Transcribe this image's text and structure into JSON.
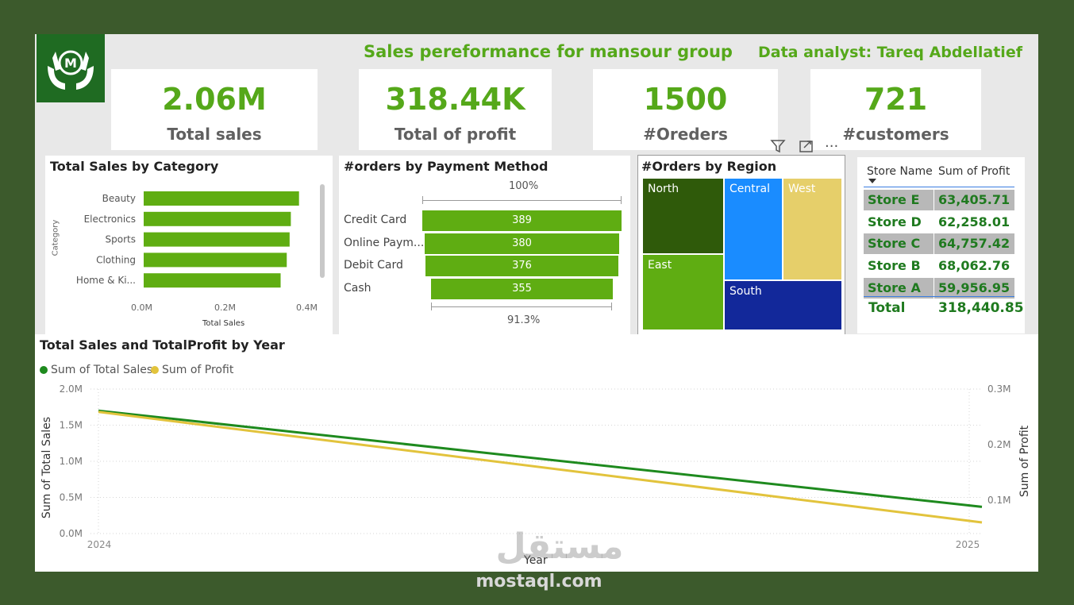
{
  "header": {
    "title": "Sales pereformance for mansour group",
    "analyst": "Data analyst: Tareq Abdellatief",
    "logo_text": "M",
    "logo_icon": "hands-holding-m-icon"
  },
  "kpis": [
    {
      "value": "2.06M",
      "label": "Total sales"
    },
    {
      "value": "318.44K",
      "label": "Total of profit"
    },
    {
      "value": "1500",
      "label": "#Oreders"
    },
    {
      "value": "721",
      "label": "#customers"
    }
  ],
  "category_chart": {
    "title": "Total Sales by Category",
    "ylabel": "Category",
    "xlabel": "Total Sales",
    "ticks": [
      "0.0M",
      "0.2M",
      "0.4M"
    ]
  },
  "payment_chart": {
    "title": "#orders by Payment Method",
    "top_pct": "100%",
    "bottom_pct": "91.3%"
  },
  "region_chart": {
    "title": "#Orders by Region"
  },
  "visual_toolbar": {
    "icons": [
      "filter-icon",
      "focus-mode-icon",
      "more-options-icon"
    ],
    "more_label": "..."
  },
  "store_table": {
    "headers": [
      "Store Name",
      "Sum of Profit"
    ],
    "rows": [
      {
        "store": "Store E",
        "profit": "63,405.71"
      },
      {
        "store": "Store D",
        "profit": "62,258.01"
      },
      {
        "store": "Store C",
        "profit": "64,757.42"
      },
      {
        "store": "Store B",
        "profit": "68,062.76"
      },
      {
        "store": "Store A",
        "profit": "59,956.95"
      }
    ],
    "total_label": "Total",
    "total_value": "318,440.85",
    "sort_icon": "sort-desc-icon"
  },
  "line_chart": {
    "title": "Total Sales and TotalProfit by Year",
    "legend": [
      "Sum of Total Sales",
      "Sum of Profit"
    ],
    "left_ticks": [
      "2.0M",
      "1.5M",
      "1.0M",
      "0.5M",
      "0.0M"
    ],
    "right_ticks": [
      "0.3M",
      "0.2M",
      "0.1M"
    ],
    "x_ticks": [
      "2024",
      "2025"
    ],
    "xlabel": "Year",
    "ylabel_left": "Sum of Total Sales",
    "ylabel_right": "Sum of Profit"
  },
  "watermark": {
    "arabic": "مستقل",
    "latin": "mostaql.com"
  },
  "colors": {
    "accent": "#55a81a",
    "bar": "#5fad12",
    "line_sales": "#1e8a1e",
    "line_profit": "#e2c33c"
  },
  "chart_data": [
    {
      "type": "bar",
      "orientation": "horizontal",
      "categories": [
        "Beauty",
        "Electronics",
        "Sports",
        "Clothing",
        "Home & Ki..."
      ],
      "values": [
        0.38,
        0.36,
        0.357,
        0.35,
        0.335
      ],
      "xlim": [
        0,
        0.4
      ],
      "xlabel": "Total Sales",
      "ylabel": "Category"
    },
    {
      "type": "bar",
      "orientation": "funnel",
      "categories": [
        "Credit Card",
        "Online Paym...",
        "Debit Card",
        "Cash"
      ],
      "values": [
        389,
        380,
        376,
        355
      ]
    },
    {
      "type": "heatmap",
      "subtype": "treemap",
      "categories": [
        "North",
        "Central",
        "West",
        "East",
        "South"
      ],
      "colors": [
        "#2f5a0a",
        "#1a8cff",
        "#e6cf6a",
        "#5fad12",
        "#12289a"
      ]
    },
    {
      "type": "line",
      "x": [
        "2024",
        "2025"
      ],
      "series": [
        {
          "name": "Sum of Total Sales",
          "values": [
            1.7,
            0.37
          ],
          "axis": "left"
        },
        {
          "name": "Sum of Profit",
          "values": [
            0.259,
            0.06
          ],
          "axis": "right"
        }
      ],
      "ylim_left": [
        0,
        2.0
      ],
      "ylim_right": [
        0.04,
        0.3
      ],
      "xlabel": "Year",
      "ylabel_left": "Sum of Total Sales",
      "ylabel_right": "Sum of Profit"
    }
  ]
}
